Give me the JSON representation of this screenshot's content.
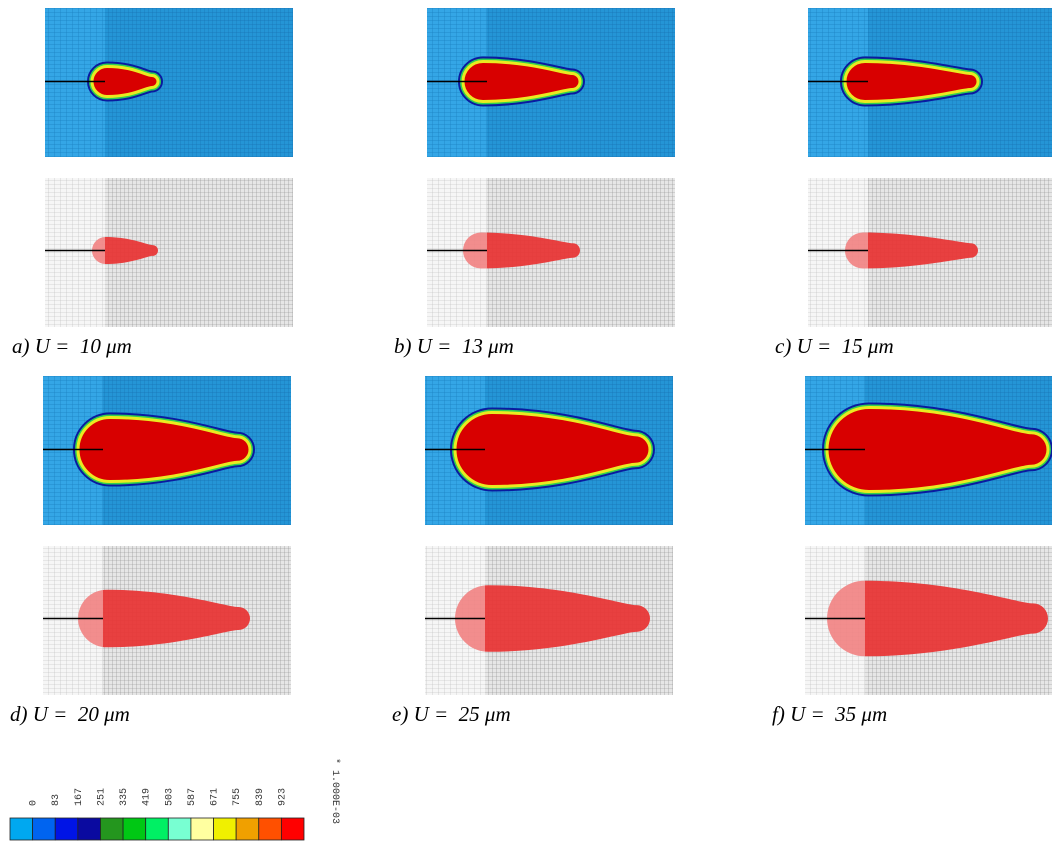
{
  "panels": [
    {
      "caption": "a) U =  10 μm"
    },
    {
      "caption": "b) U =  13 μm"
    },
    {
      "caption": "c) U =  15 μm"
    },
    {
      "caption": "d) U =  20 μm"
    },
    {
      "caption": "e) U =  25 μm"
    },
    {
      "caption": "f) U =  35 μm"
    }
  ],
  "colorbar": {
    "labels": [
      0,
      83,
      167,
      251,
      335,
      419,
      503,
      587,
      671,
      755,
      839,
      923
    ],
    "multiplier": "* 1.000E-03",
    "colors": [
      "#00a8f0",
      "#0064f0",
      "#0014e6",
      "#0a0aa0",
      "#24961e",
      "#00c814",
      "#00f064",
      "#78ffd2",
      "#ffffa0",
      "#f0f000",
      "#f0a000",
      "#ff5000",
      "#ff0000"
    ]
  }
}
